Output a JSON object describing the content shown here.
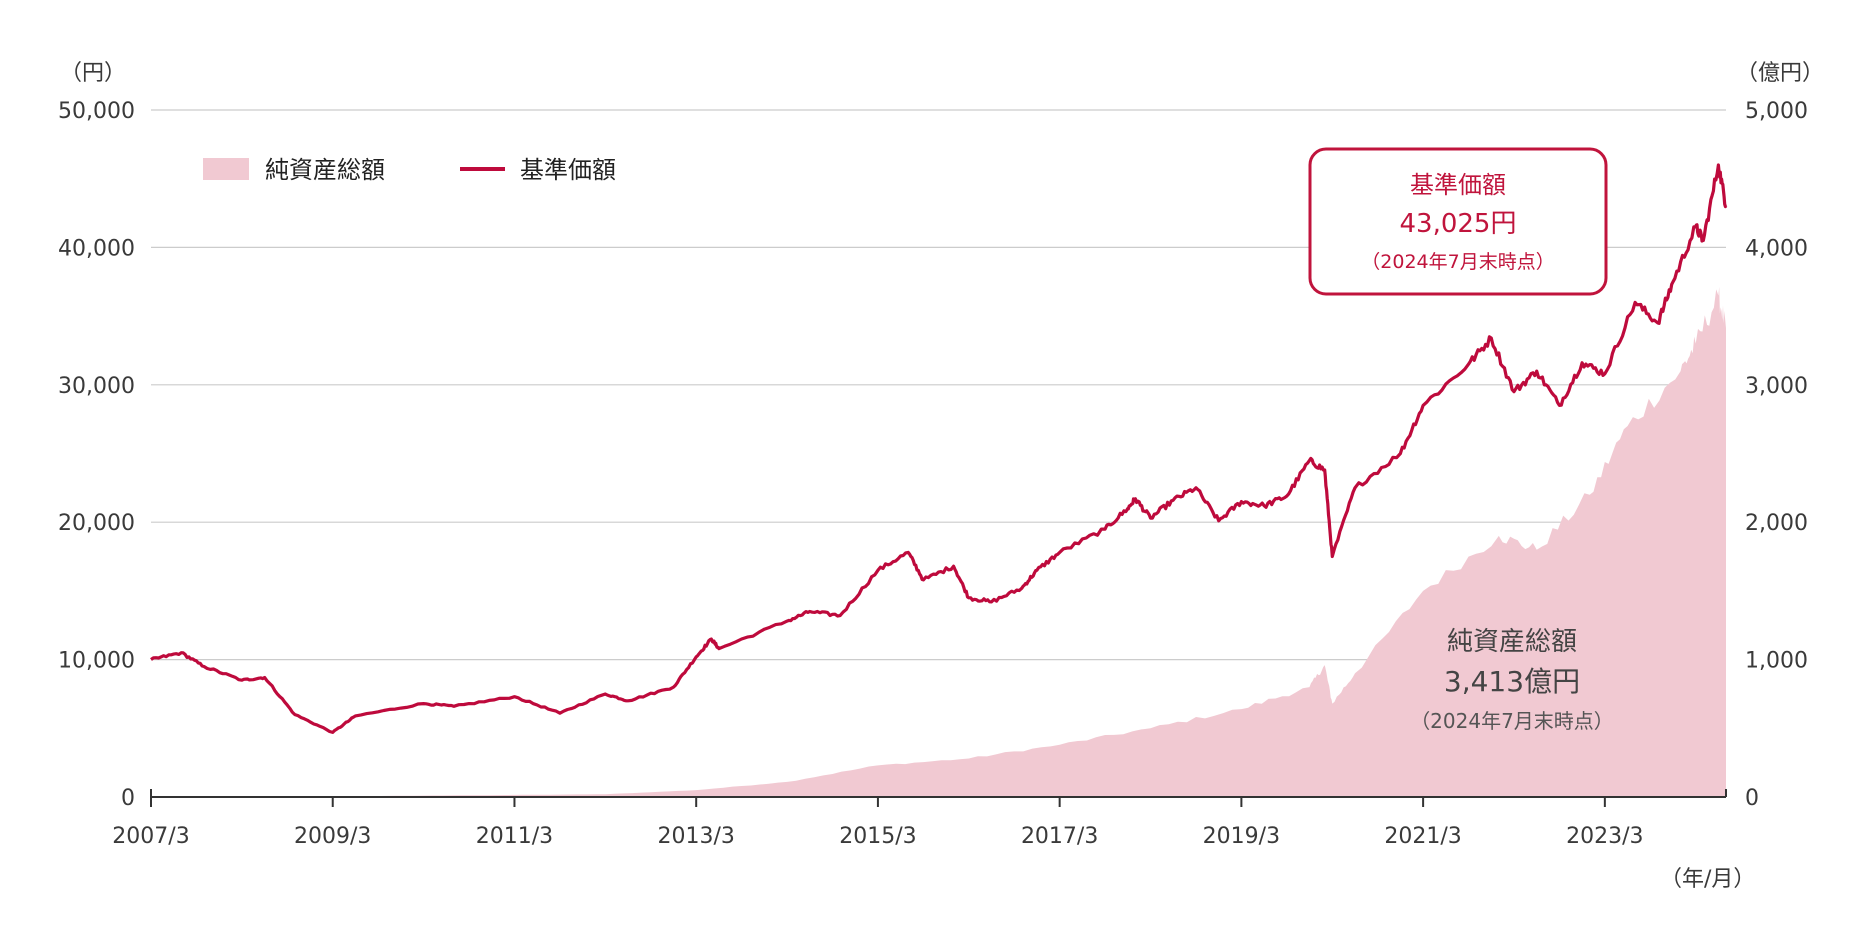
{
  "chart_data": {
    "type": "line",
    "title": "",
    "left_axis_unit": "（円）",
    "right_axis_unit": "（億円）",
    "x_axis_unit": "（年/月）",
    "x_ticks": [
      "2007/3",
      "2009/3",
      "2011/3",
      "2013/3",
      "2015/3",
      "2017/3",
      "2019/3",
      "2021/3",
      "2023/3"
    ],
    "left_ticks": [
      "0",
      "10,000",
      "20,000",
      "30,000",
      "40,000",
      "50,000"
    ],
    "right_ticks": [
      "0",
      "1,000",
      "2,000",
      "3,000",
      "4,000",
      "5,000"
    ],
    "ylim_left": [
      0,
      50000
    ],
    "ylim_right": [
      0,
      5000
    ],
    "xlim": [
      "2007/3",
      "2024/7"
    ],
    "grid": true,
    "legend_position": "top-left",
    "colors": {
      "nav_area": "#f1c9d2",
      "price_line": "#be0a3c",
      "grid": "#cccccc",
      "axis": "#333333"
    },
    "series": [
      {
        "name": "純資産総額",
        "type": "area",
        "axis": "right",
        "x": [
          "2007/3",
          "2008/3",
          "2009/3",
          "2010/3",
          "2011/3",
          "2012/3",
          "2013/3",
          "2014/3",
          "2015/3",
          "2016/3",
          "2017/3",
          "2018/3",
          "2019/3",
          "2019/12",
          "2020/2",
          "2020/3",
          "2020/6",
          "2021/3",
          "2022/1",
          "2022/6",
          "2023/1",
          "2023/6",
          "2024/1",
          "2024/3",
          "2024/6",
          "2024/7"
        ],
        "values": [
          2,
          5,
          5,
          10,
          15,
          20,
          50,
          110,
          230,
          280,
          380,
          500,
          640,
          800,
          960,
          680,
          900,
          1500,
          1900,
          1800,
          2200,
          2700,
          3100,
          3300,
          3650,
          3413
        ]
      },
      {
        "name": "基準価額",
        "type": "line",
        "axis": "left",
        "x": [
          "2007/3",
          "2007/7",
          "2007/10",
          "2008/3",
          "2008/6",
          "2008/10",
          "2009/3",
          "2009/6",
          "2010/3",
          "2010/7",
          "2011/3",
          "2011/9",
          "2012/3",
          "2012/6",
          "2012/12",
          "2013/3",
          "2013/5",
          "2013/6",
          "2014/3",
          "2014/6",
          "2014/10",
          "2015/3",
          "2015/7",
          "2015/9",
          "2016/1",
          "2016/3",
          "2016/6",
          "2016/10",
          "2016/12",
          "2017/3",
          "2017/9",
          "2017/12",
          "2018/1",
          "2018/3",
          "2018/6",
          "2018/9",
          "2018/12",
          "2019/3",
          "2019/6",
          "2019/9",
          "2019/12",
          "2020/2",
          "2020/3",
          "2020/6",
          "2020/12",
          "2021/3",
          "2021/9",
          "2021/12",
          "2022/3",
          "2022/6",
          "2022/9",
          "2022/12",
          "2023/3",
          "2023/7",
          "2023/10",
          "2023/12",
          "2024/3",
          "2024/4",
          "2024/6",
          "2024/7"
        ],
        "values": [
          10000,
          10500,
          9500,
          8500,
          8700,
          6000,
          4700,
          5900,
          6800,
          6600,
          7300,
          6100,
          7500,
          7000,
          8000,
          10200,
          11500,
          10800,
          12800,
          13500,
          13200,
          16500,
          17800,
          15800,
          16800,
          14500,
          14200,
          15200,
          16500,
          17800,
          19500,
          21000,
          21700,
          20300,
          21600,
          22500,
          20100,
          21500,
          21200,
          21900,
          24500,
          23800,
          17500,
          22500,
          25000,
          28500,
          31500,
          33400,
          29500,
          31000,
          28500,
          31600,
          30800,
          36000,
          34500,
          37500,
          41500,
          40500,
          46000,
          43025
        ]
      }
    ],
    "annotations": {
      "price": {
        "title": "基準価額",
        "value": "43,025円",
        "note": "（2024年7月末時点）"
      },
      "nav": {
        "title": "純資産総額",
        "value": "3,413億円",
        "note": "（2024年7月末時点）"
      }
    }
  }
}
